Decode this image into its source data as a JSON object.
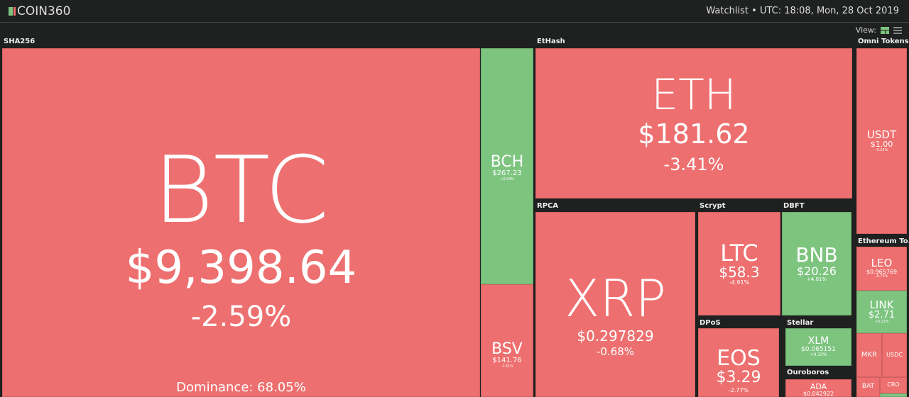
{
  "header": {
    "logo": "COIN360",
    "watchlist": "Watchlist",
    "separator": "•",
    "time": "UTC: 18:08, Mon, 28 Oct 2019"
  },
  "view": {
    "label": "View:",
    "icons": [
      "treemap-icon",
      "list-icon"
    ]
  },
  "colors": {
    "down": "#ee6f6f",
    "up": "#7dc47f",
    "accent": "#7dc47f"
  },
  "groups": [
    "SHA256",
    "EtHash",
    "RPCA",
    "Scrypt",
    "DBFT",
    "DPoS",
    "Stellar",
    "Ouroboros",
    "Omni Tokens",
    "Ethereum To..."
  ],
  "tiles": {
    "btc": {
      "sym": "BTC",
      "price": "$9,398.64",
      "chg": "-2.59%",
      "extra": "Dominance: 68.05%"
    },
    "bch": {
      "sym": "BCH",
      "price": "$267.23",
      "chg": "+0.94%"
    },
    "bsv": {
      "sym": "BSV",
      "price": "$141.76",
      "chg": "-1.51%"
    },
    "eth": {
      "sym": "ETH",
      "price": "$181.62",
      "chg": "-3.41%"
    },
    "xrp": {
      "sym": "XRP",
      "price": "$0.297829",
      "chg": "-0.68%"
    },
    "ltc": {
      "sym": "LTC",
      "price": "$58.3",
      "chg": "-4.91%"
    },
    "bnb": {
      "sym": "BNB",
      "price": "$20.26",
      "chg": "+4.01%"
    },
    "eos": {
      "sym": "EOS",
      "price": "$3.29",
      "chg": "-2.77%"
    },
    "xlm": {
      "sym": "XLM",
      "price": "$0.065151",
      "chg": "+0.33%"
    },
    "ada": {
      "sym": "ADA",
      "price": "$0.042922"
    },
    "usdt": {
      "sym": "USDT",
      "price": "$1.00",
      "chg": "-0.23%"
    },
    "leo": {
      "sym": "LEO",
      "price": "$0.965769",
      "chg": "-0.73%"
    },
    "link": {
      "sym": "LINK",
      "price": "$2.71",
      "chg": "+0.13%"
    },
    "mkr": {
      "sym": "MKR"
    },
    "usdc": {
      "sym": "USDC"
    },
    "bat": {
      "sym": "BAT"
    },
    "cro": {
      "sym": "CRO"
    }
  }
}
